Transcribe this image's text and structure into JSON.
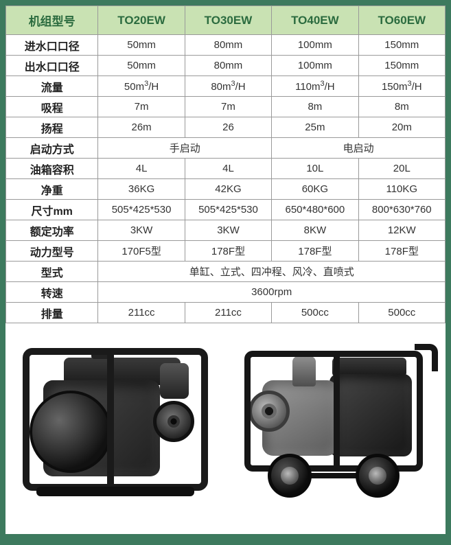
{
  "table": {
    "header_bg": "#c9e2b3",
    "header_fg": "#2b6b3f",
    "border_color": "#999999",
    "font_family": "Microsoft YaHei",
    "header": [
      "机组型号",
      "TO20EW",
      "TO30EW",
      "TO40EW",
      "TO60EW"
    ],
    "rows": [
      {
        "label": "进水口口径",
        "cells": [
          "50mm",
          "80mm",
          "100mm",
          "150mm"
        ]
      },
      {
        "label": "出水口口径",
        "cells": [
          "50mm",
          "80mm",
          "100mm",
          "150mm"
        ]
      },
      {
        "label": "流量",
        "cells": [
          "50m³/H",
          "80m³/H",
          "110m³/H",
          "150m³/H"
        ]
      },
      {
        "label": "吸程",
        "cells": [
          "7m",
          "7m",
          "8m",
          "8m"
        ]
      },
      {
        "label": "扬程",
        "cells": [
          "26m",
          "26",
          "25m",
          "20m"
        ]
      },
      {
        "label": "启动方式",
        "span2": [
          "手启动",
          "电启动"
        ]
      },
      {
        "label": "油箱容积",
        "cells": [
          "4L",
          "4L",
          "10L",
          "20L"
        ]
      },
      {
        "label": "净重",
        "cells": [
          "36KG",
          "42KG",
          "60KG",
          "110KG"
        ]
      },
      {
        "label": "尺寸mm",
        "cells": [
          "505*425*530",
          "505*425*530",
          "650*480*600",
          "800*630*760"
        ]
      },
      {
        "label": "额定功率",
        "cells": [
          "3KW",
          "3KW",
          "8KW",
          "12KW"
        ]
      },
      {
        "label": "动力型号",
        "cells": [
          "170F5型",
          "178F型",
          "178F型",
          "178F型"
        ]
      },
      {
        "label": "型式",
        "span4": "单缸、立式、四冲程、风冷、直喷式"
      },
      {
        "label": "转速",
        "span4": "3600rpm"
      },
      {
        "label": "排量",
        "cells": [
          "211cc",
          "211cc",
          "500cc",
          "500cc"
        ]
      }
    ]
  },
  "page_bg": "#3d7a5e",
  "content_bg": "#ffffff",
  "images": {
    "left_alt": "frame-mounted engine water pump",
    "right_alt": "wheeled engine water pump"
  }
}
